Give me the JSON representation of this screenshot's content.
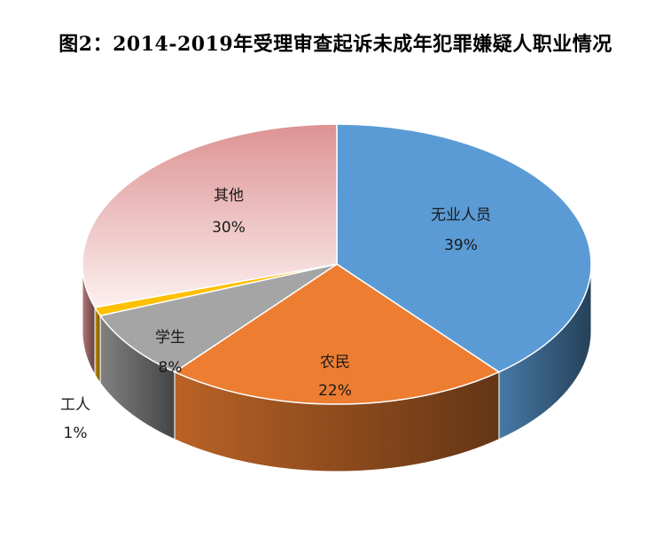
{
  "chart_data": {
    "type": "pie",
    "title": "图2：2014-2019年受理审查起诉未成年犯罪嫌疑人职业情况",
    "style": "3d",
    "slices": [
      {
        "label": "无业人员",
        "value": 39,
        "display": "39%",
        "color": "#5B9BD5"
      },
      {
        "label": "农民",
        "value": 22,
        "display": "22%",
        "color": "#ED7D31"
      },
      {
        "label": "学生",
        "value": 8,
        "display": "8%",
        "color": "#A5A5A5"
      },
      {
        "label": "工人",
        "value": 1,
        "display": "1%",
        "color": "#FFC000"
      },
      {
        "label": "其他",
        "value": 30,
        "display": "30%",
        "color": "#E99A9A"
      }
    ]
  }
}
